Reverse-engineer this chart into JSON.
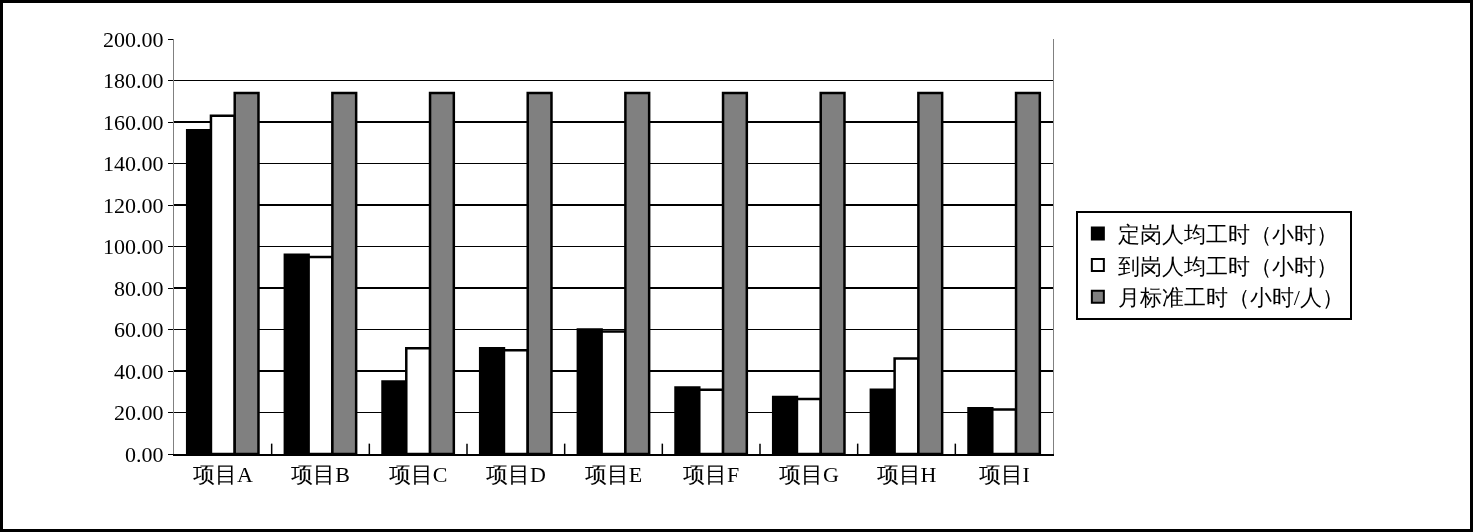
{
  "chart_data": {
    "type": "bar",
    "categories": [
      "项目A",
      "项目B",
      "项目C",
      "项目D",
      "项目E",
      "项目F",
      "项目G",
      "项目H",
      "项目I"
    ],
    "series": [
      {
        "name": "定岗人均工时（小时）",
        "color": "#000000",
        "values": [
          156,
          96,
          35,
          51,
          60,
          32,
          27.5,
          31,
          22
        ]
      },
      {
        "name": "到岗人均工时（小时）",
        "color": "#ffffff",
        "values": [
          163,
          95,
          51,
          50,
          59,
          31,
          26.5,
          46,
          21.5
        ]
      },
      {
        "name": "月标准工时（小时/人）",
        "color": "#808080",
        "values": [
          174,
          174,
          174,
          174,
          174,
          174,
          174,
          174,
          174
        ]
      }
    ],
    "ylim": [
      0,
      200
    ],
    "yticks": [
      {
        "value": 0,
        "label": "0.00"
      },
      {
        "value": 20,
        "label": "20.00"
      },
      {
        "value": 40,
        "label": "40.00"
      },
      {
        "value": 60,
        "label": "60.00"
      },
      {
        "value": 80,
        "label": "80.00"
      },
      {
        "value": 100,
        "label": "100.00"
      },
      {
        "value": 120,
        "label": "120.00"
      },
      {
        "value": 140,
        "label": "140.00"
      },
      {
        "value": 160,
        "label": "160.00"
      },
      {
        "value": 180,
        "label": "180.00"
      },
      {
        "value": 200,
        "label": "200.00"
      }
    ],
    "grid": "y",
    "legend": "right"
  }
}
